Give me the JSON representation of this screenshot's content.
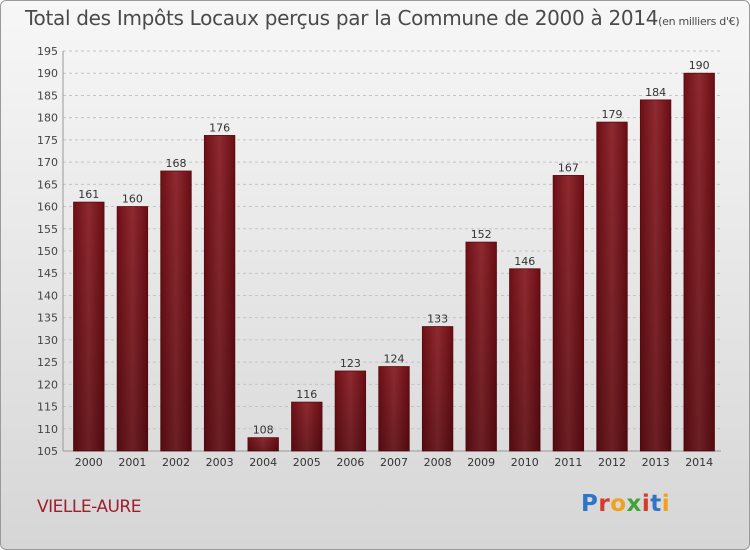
{
  "chart_data": {
    "type": "bar",
    "title": "Total des Impôts Locaux perçus par la Commune de 2000 à 2014",
    "unit_note": "(en milliers d'€)",
    "categories": [
      "2000",
      "2001",
      "2002",
      "2003",
      "2004",
      "2005",
      "2006",
      "2007",
      "2008",
      "2009",
      "2010",
      "2011",
      "2012",
      "2013",
      "2014"
    ],
    "values": [
      161,
      160,
      168,
      176,
      108,
      116,
      123,
      124,
      133,
      152,
      146,
      167,
      179,
      184,
      190
    ],
    "ylim": [
      105,
      195
    ],
    "yticks": [
      105,
      110,
      115,
      120,
      125,
      130,
      135,
      140,
      145,
      150,
      155,
      160,
      165,
      170,
      175,
      180,
      185,
      190,
      195
    ],
    "grid": true,
    "xlabel": "",
    "ylabel": "",
    "bar_color": "#8e2a30"
  },
  "commune": "VIELLE-AURE",
  "logo": {
    "text": "Proxiti",
    "letter_colors": [
      "#2f74c6",
      "#d63a2b",
      "#f0a21c",
      "#3fa33a",
      "#d63a2b",
      "#2f74c6",
      "#f0a21c"
    ]
  }
}
